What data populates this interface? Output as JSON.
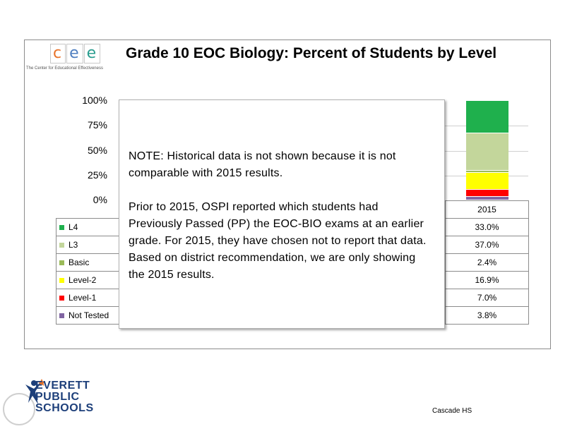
{
  "logo": {
    "letters": [
      "c",
      "e",
      "e"
    ],
    "subtitle": "The Center for Educational Effectiveness",
    "colors": [
      "#e8732a",
      "#4f7fc0",
      "#2a9d8f"
    ]
  },
  "title": "Grade 10 EOC Biology: Percent of Students by Level",
  "note": {
    "paragraph1": "NOTE:  Historical data is not shown because it is not comparable with 2015 results.",
    "paragraph2": "Prior to 2015, OSPI reported which students had Previously Passed (PP) the EOC-BIO exams at an earlier grade. For 2015, they have chosen not to report that data. Based on district recommendation, we are only showing the 2015 results."
  },
  "chart_data": {
    "type": "bar",
    "stacked": true,
    "categories": [
      "2015"
    ],
    "yticks": [
      "100%",
      "75%",
      "50%",
      "25%",
      "0%"
    ],
    "ylim": [
      0,
      100
    ],
    "series": [
      {
        "name": "L4",
        "values": [
          33.0
        ],
        "label": "33.0%",
        "color": "#1fb04d"
      },
      {
        "name": "L3",
        "values": [
          37.0
        ],
        "label": "37.0%",
        "color": "#c3d69b"
      },
      {
        "name": "Basic",
        "values": [
          2.4
        ],
        "label": "2.4%",
        "color": "#9bbb59"
      },
      {
        "name": "Level-2",
        "values": [
          16.9
        ],
        "label": "16.9%",
        "color": "#ffff00"
      },
      {
        "name": "Level-1",
        "values": [
          7.0
        ],
        "label": "7.0%",
        "color": "#ff0000"
      },
      {
        "name": "Not Tested",
        "values": [
          3.8
        ],
        "label": "3.8%",
        "color": "#8064a2"
      }
    ]
  },
  "district": {
    "line1": "EVERETT",
    "line2": "PUBLIC",
    "line3": "SCHOOLS"
  },
  "footer": "Cascade HS"
}
